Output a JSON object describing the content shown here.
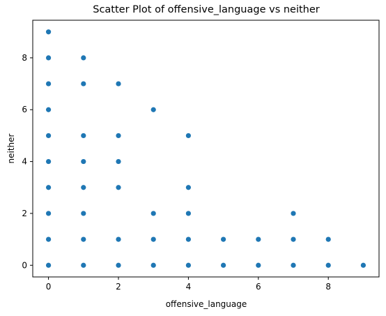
{
  "chart_data": {
    "type": "scatter",
    "title": "Scatter Plot of offensive_language vs neither",
    "xlabel": "offensive_language",
    "ylabel": "neither",
    "xlim": [
      -0.45,
      9.45
    ],
    "ylim": [
      -0.45,
      9.45
    ],
    "xticks": [
      0,
      2,
      4,
      6,
      8
    ],
    "yticks": [
      0,
      2,
      4,
      6,
      8
    ],
    "grid": false,
    "marker_color": "#1f77b4",
    "points": [
      [
        0,
        0
      ],
      [
        0,
        1
      ],
      [
        0,
        2
      ],
      [
        0,
        3
      ],
      [
        0,
        4
      ],
      [
        0,
        5
      ],
      [
        0,
        6
      ],
      [
        0,
        7
      ],
      [
        0,
        8
      ],
      [
        0,
        9
      ],
      [
        1,
        0
      ],
      [
        1,
        1
      ],
      [
        1,
        2
      ],
      [
        1,
        3
      ],
      [
        1,
        4
      ],
      [
        1,
        5
      ],
      [
        1,
        7
      ],
      [
        1,
        8
      ],
      [
        2,
        0
      ],
      [
        2,
        1
      ],
      [
        2,
        3
      ],
      [
        2,
        4
      ],
      [
        2,
        5
      ],
      [
        2,
        7
      ],
      [
        3,
        0
      ],
      [
        3,
        1
      ],
      [
        3,
        2
      ],
      [
        3,
        6
      ],
      [
        4,
        0
      ],
      [
        4,
        1
      ],
      [
        4,
        2
      ],
      [
        4,
        3
      ],
      [
        4,
        5
      ],
      [
        5,
        0
      ],
      [
        5,
        1
      ],
      [
        6,
        0
      ],
      [
        6,
        1
      ],
      [
        7,
        0
      ],
      [
        7,
        1
      ],
      [
        7,
        2
      ],
      [
        8,
        0
      ],
      [
        8,
        1
      ],
      [
        9,
        0
      ]
    ]
  }
}
